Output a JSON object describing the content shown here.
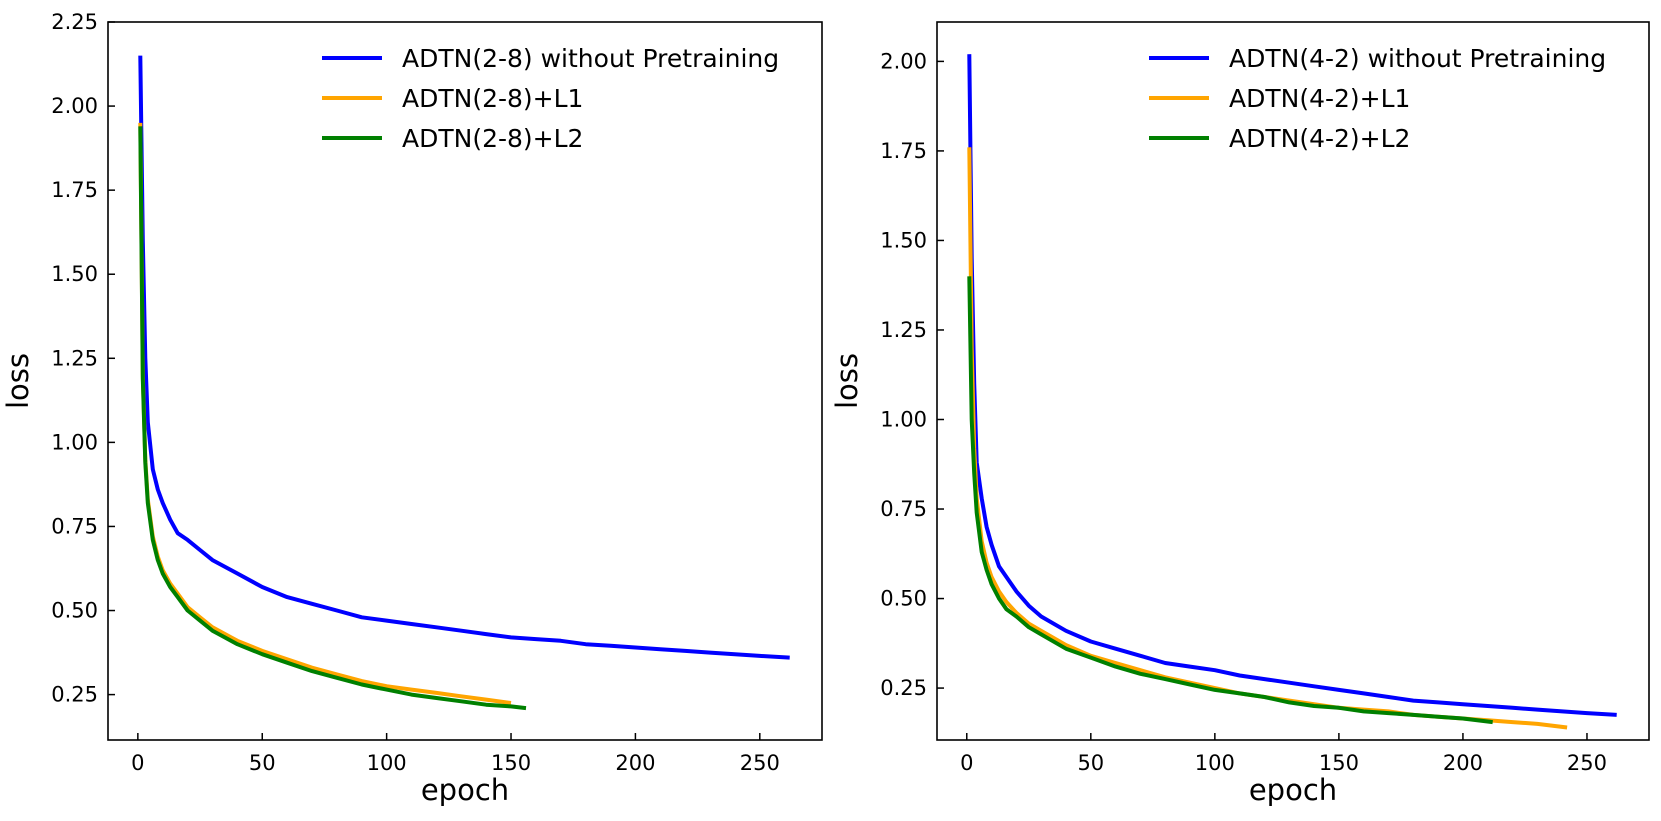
{
  "chart_data": [
    {
      "type": "line",
      "title": "",
      "xlabel": "epoch",
      "ylabel": "loss",
      "xlim": [
        -12,
        275
      ],
      "ylim": [
        0.115,
        2.25
      ],
      "xticks": [
        0,
        50,
        100,
        150,
        200,
        250
      ],
      "yticks": [
        0.25,
        0.5,
        0.75,
        1.0,
        1.25,
        1.5,
        1.75,
        2.0,
        2.25
      ],
      "ytick_labels": [
        "0.25",
        "0.50",
        "0.75",
        "1.00",
        "1.25",
        "1.50",
        "1.75",
        "2.00",
        "2.25"
      ],
      "xtick_labels": [
        "0",
        "50",
        "100",
        "150",
        "200",
        "250"
      ],
      "grid": false,
      "legend_position": "top-right",
      "series": [
        {
          "name": "ADTN(2-8) without Pretraining",
          "color": "#0000ff",
          "x": [
            1,
            2,
            3,
            4,
            6,
            8,
            10,
            13,
            16,
            20,
            25,
            30,
            40,
            50,
            60,
            70,
            80,
            90,
            100,
            110,
            120,
            130,
            140,
            150,
            160,
            170,
            180,
            190,
            200,
            210,
            220,
            230,
            240,
            250,
            262
          ],
          "y": [
            2.15,
            1.6,
            1.25,
            1.06,
            0.92,
            0.86,
            0.82,
            0.77,
            0.73,
            0.71,
            0.68,
            0.65,
            0.61,
            0.57,
            0.54,
            0.52,
            0.5,
            0.48,
            0.47,
            0.46,
            0.45,
            0.44,
            0.43,
            0.42,
            0.415,
            0.41,
            0.4,
            0.395,
            0.39,
            0.385,
            0.38,
            0.375,
            0.37,
            0.365,
            0.36
          ]
        },
        {
          "name": "ADTN(2-8)+L1",
          "color": "#ffa500",
          "x": [
            1,
            2,
            3,
            4,
            6,
            8,
            10,
            13,
            16,
            20,
            25,
            30,
            40,
            50,
            60,
            70,
            80,
            90,
            100,
            110,
            120,
            130,
            140,
            150
          ],
          "y": [
            1.95,
            1.2,
            0.95,
            0.83,
            0.72,
            0.66,
            0.62,
            0.58,
            0.55,
            0.51,
            0.48,
            0.45,
            0.41,
            0.38,
            0.355,
            0.33,
            0.31,
            0.29,
            0.275,
            0.265,
            0.255,
            0.245,
            0.235,
            0.225
          ]
        },
        {
          "name": "ADTN(2-8)+L2",
          "color": "#008000",
          "x": [
            1,
            2,
            3,
            4,
            6,
            8,
            10,
            13,
            16,
            20,
            25,
            30,
            40,
            50,
            60,
            70,
            80,
            90,
            100,
            110,
            120,
            130,
            140,
            150,
            156
          ],
          "y": [
            1.94,
            1.19,
            0.94,
            0.82,
            0.71,
            0.65,
            0.61,
            0.57,
            0.54,
            0.5,
            0.47,
            0.44,
            0.4,
            0.37,
            0.345,
            0.32,
            0.3,
            0.28,
            0.265,
            0.25,
            0.24,
            0.23,
            0.22,
            0.215,
            0.21
          ]
        }
      ]
    },
    {
      "type": "line",
      "title": "",
      "xlabel": "epoch",
      "ylabel": "loss",
      "xlim": [
        -12,
        275
      ],
      "ylim": [
        0.105,
        2.11
      ],
      "xticks": [
        0,
        50,
        100,
        150,
        200,
        250
      ],
      "yticks": [
        0.25,
        0.5,
        0.75,
        1.0,
        1.25,
        1.5,
        1.75,
        2.0
      ],
      "ytick_labels": [
        "0.25",
        "0.50",
        "0.75",
        "1.00",
        "1.25",
        "1.50",
        "1.75",
        "2.00"
      ],
      "xtick_labels": [
        "0",
        "50",
        "100",
        "150",
        "200",
        "250"
      ],
      "grid": false,
      "legend_position": "top-right",
      "series": [
        {
          "name": "ADTN(4-2) without Pretraining",
          "color": "#0000ff",
          "x": [
            1,
            2,
            3,
            4,
            6,
            8,
            10,
            13,
            16,
            20,
            25,
            30,
            40,
            50,
            60,
            70,
            80,
            90,
            100,
            110,
            120,
            130,
            140,
            150,
            160,
            170,
            180,
            190,
            200,
            210,
            220,
            230,
            240,
            250,
            262
          ],
          "y": [
            2.02,
            1.45,
            1.1,
            0.88,
            0.78,
            0.7,
            0.65,
            0.59,
            0.56,
            0.52,
            0.48,
            0.45,
            0.41,
            0.38,
            0.36,
            0.34,
            0.32,
            0.31,
            0.3,
            0.285,
            0.275,
            0.265,
            0.255,
            0.245,
            0.235,
            0.225,
            0.215,
            0.21,
            0.205,
            0.2,
            0.195,
            0.19,
            0.185,
            0.18,
            0.175
          ]
        },
        {
          "name": "ADTN(4-2)+L1",
          "color": "#ffa500",
          "x": [
            1,
            2,
            3,
            4,
            6,
            8,
            10,
            13,
            16,
            20,
            25,
            30,
            40,
            50,
            60,
            70,
            80,
            90,
            100,
            110,
            120,
            130,
            140,
            150,
            160,
            170,
            180,
            190,
            200,
            210,
            220,
            230,
            242
          ],
          "y": [
            1.76,
            1.2,
            0.92,
            0.78,
            0.66,
            0.6,
            0.56,
            0.52,
            0.49,
            0.46,
            0.43,
            0.41,
            0.37,
            0.34,
            0.32,
            0.3,
            0.28,
            0.265,
            0.25,
            0.235,
            0.225,
            0.215,
            0.205,
            0.195,
            0.19,
            0.185,
            0.175,
            0.17,
            0.165,
            0.16,
            0.155,
            0.15,
            0.14
          ]
        },
        {
          "name": "ADTN(4-2)+L2",
          "color": "#008000",
          "x": [
            1,
            2,
            3,
            4,
            6,
            8,
            10,
            13,
            16,
            20,
            25,
            30,
            40,
            50,
            60,
            70,
            80,
            90,
            100,
            110,
            120,
            130,
            140,
            150,
            160,
            170,
            180,
            190,
            200,
            212
          ],
          "y": [
            1.4,
            1.0,
            0.85,
            0.74,
            0.63,
            0.58,
            0.54,
            0.5,
            0.47,
            0.45,
            0.42,
            0.4,
            0.36,
            0.335,
            0.31,
            0.29,
            0.275,
            0.26,
            0.245,
            0.235,
            0.225,
            0.21,
            0.2,
            0.195,
            0.185,
            0.18,
            0.175,
            0.17,
            0.165,
            0.155
          ]
        }
      ]
    }
  ]
}
